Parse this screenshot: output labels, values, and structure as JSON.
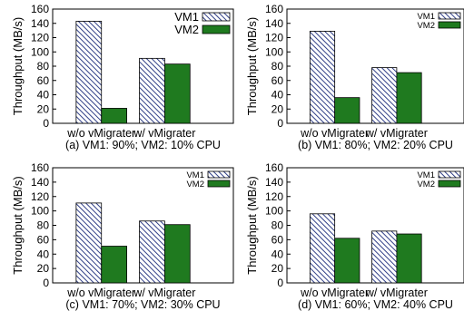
{
  "colors": {
    "vm1_hatch": "#1a2a7a",
    "vm1_fill": "#ffffff",
    "vm2": "#1f7a1f",
    "axis": "#000000"
  },
  "chart_data": [
    {
      "type": "bar",
      "caption": "(a) VM1: 90%; VM2: 10% CPU",
      "ylabel": "Throughput (MB/s)",
      "ylim": [
        0,
        160
      ],
      "yticks": [
        0,
        20,
        40,
        60,
        80,
        100,
        120,
        140,
        160
      ],
      "categories": [
        "w/o vMigrater",
        "w/ vMigrater"
      ],
      "series": [
        {
          "name": "VM1",
          "values": [
            143,
            91
          ]
        },
        {
          "name": "VM2",
          "values": [
            21,
            83
          ]
        }
      ],
      "legend": "top-right"
    },
    {
      "type": "bar",
      "caption": "(b) VM1: 80%; VM2: 20% CPU",
      "ylabel": "Throughput (MB/s)",
      "ylim": [
        0,
        160
      ],
      "yticks": [
        0,
        20,
        40,
        60,
        80,
        100,
        120,
        140,
        160
      ],
      "categories": [
        "w/o vMigrater",
        "w/ vMigrater"
      ],
      "series": [
        {
          "name": "VM1",
          "values": [
            129,
            78
          ]
        },
        {
          "name": "VM2",
          "values": [
            36,
            71
          ]
        }
      ],
      "legend": "top-right"
    },
    {
      "type": "bar",
      "caption": "(c) VM1: 70%; VM2: 30% CPU",
      "ylabel": "Throughput (MB/s)",
      "ylim": [
        0,
        160
      ],
      "yticks": [
        0,
        20,
        40,
        60,
        80,
        100,
        120,
        140,
        160
      ],
      "categories": [
        "w/o vMigrater",
        "w/ vMigrater"
      ],
      "series": [
        {
          "name": "VM1",
          "values": [
            111,
            86
          ]
        },
        {
          "name": "VM2",
          "values": [
            51,
            81
          ]
        }
      ],
      "legend": "top-right"
    },
    {
      "type": "bar",
      "caption": "(d) VM1: 60%; VM2: 40% CPU",
      "ylabel": "Throughput (MB/s)",
      "ylim": [
        0,
        160
      ],
      "yticks": [
        0,
        20,
        40,
        60,
        80,
        100,
        120,
        140,
        160
      ],
      "categories": [
        "w/o vMigrater",
        "w/ vMigrater"
      ],
      "series": [
        {
          "name": "VM1",
          "values": [
            96,
            72
          ]
        },
        {
          "name": "VM2",
          "values": [
            62,
            68
          ]
        }
      ],
      "legend": "top-right"
    }
  ]
}
